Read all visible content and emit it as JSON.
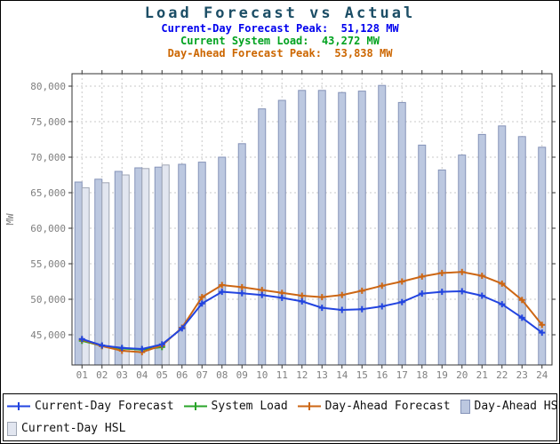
{
  "header": {
    "title": "Load Forecast vs Actual",
    "stats": [
      {
        "name": "current-day-forecast-peak",
        "text": "Current-Day Forecast Peak:  51,128 MW",
        "color": "#0000ee"
      },
      {
        "name": "current-system-load",
        "text": "Current System Load:  43,272 MW",
        "color": "#00a220"
      },
      {
        "name": "day-ahead-forecast-peak",
        "text": "Day-Ahead Forecast Peak:  53,838 MW",
        "color": "#cc6600"
      }
    ]
  },
  "legend": {
    "items": [
      {
        "label": "Current-Day Forecast",
        "type": "line",
        "color": "#2244e0"
      },
      {
        "label": "System Load",
        "type": "line",
        "color": "#28a428"
      },
      {
        "label": "Day-Ahead Forecast",
        "type": "line",
        "color": "#cc6614"
      },
      {
        "label": "Day-Ahead HSL",
        "type": "bar",
        "color": "#bcc8e0",
        "border": "#8593b8"
      },
      {
        "label": "Current-Day HSL",
        "type": "bar",
        "color": "#e2e6f0",
        "border": "#9fa6b4"
      }
    ]
  },
  "chart_data": {
    "type": "combo-bar-line",
    "title": "Load Forecast vs Actual",
    "xlabel": "",
    "ylabel": "MW",
    "x_categories": [
      "01",
      "02",
      "03",
      "04",
      "05",
      "06",
      "07",
      "08",
      "09",
      "10",
      "11",
      "12",
      "13",
      "14",
      "15",
      "16",
      "17",
      "18",
      "19",
      "20",
      "21",
      "22",
      "23",
      "24"
    ],
    "yticks": [
      45000,
      50000,
      55000,
      60000,
      65000,
      70000,
      75000,
      80000
    ],
    "ytick_labels": [
      "45,000",
      "50,000",
      "55,000",
      "60,000",
      "65,000",
      "70,000",
      "75,000",
      "80,000"
    ],
    "ylim": [
      40750,
      81750
    ],
    "grid": "dashed-both",
    "legend_position": "bottom",
    "axis_text_color": "#7f7f7f",
    "gridline_color": "#c8c8c8",
    "plot_border_color": "#333333",
    "series": [
      {
        "name": "Day-Ahead HSL",
        "type": "bar",
        "fill": "#bcc8e0",
        "stroke": "#8593b8",
        "values": [
          66500,
          66900,
          68000,
          68500,
          68600,
          69000,
          69300,
          70000,
          71900,
          76800,
          78000,
          79400,
          79400,
          79100,
          79300,
          80100,
          77700,
          71700,
          68200,
          70300,
          73200,
          74400,
          72900,
          71400
        ]
      },
      {
        "name": "Current-Day HSL",
        "type": "bar",
        "fill": "#e2e6f0",
        "stroke": "#9fa6b4",
        "values": [
          65700,
          66400,
          67500,
          68400,
          68900,
          null,
          null,
          null,
          null,
          null,
          null,
          null,
          null,
          null,
          null,
          null,
          null,
          null,
          null,
          null,
          null,
          null,
          null,
          null
        ]
      },
      {
        "name": "System Load",
        "type": "line",
        "color": "#28a428",
        "values": [
          44150,
          43430,
          43060,
          42920,
          43272,
          null,
          null,
          null,
          null,
          null,
          null,
          null,
          null,
          null,
          null,
          null,
          null,
          null,
          null,
          null,
          null,
          null,
          null,
          null
        ]
      },
      {
        "name": "Day-Ahead Forecast",
        "type": "line",
        "color": "#cc6614",
        "values": [
          44300,
          43400,
          42750,
          42550,
          43500,
          46000,
          50300,
          52000,
          51700,
          51300,
          50900,
          50500,
          50300,
          50600,
          51200,
          51900,
          52500,
          53200,
          53700,
          53838,
          53300,
          52200,
          49900,
          46400
        ]
      },
      {
        "name": "Current-Day Forecast",
        "type": "line",
        "color": "#2244e0",
        "values": [
          44400,
          43500,
          43150,
          43000,
          43650,
          45900,
          49400,
          51050,
          50850,
          50600,
          50200,
          49700,
          48800,
          48500,
          48600,
          49000,
          49600,
          50800,
          51050,
          51128,
          50500,
          49300,
          47400,
          45300
        ]
      }
    ]
  }
}
